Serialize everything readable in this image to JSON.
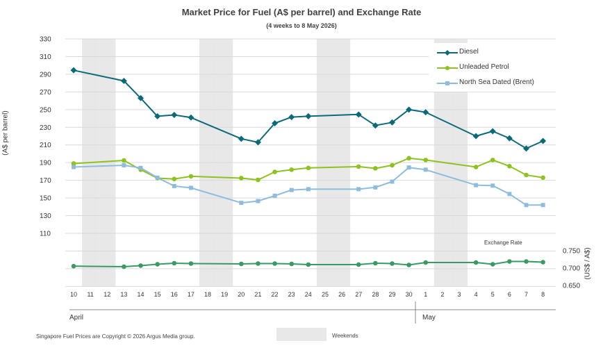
{
  "title": "Market Price for Fuel (A$ per barrel) and Exchange Rate",
  "subtitle": "(4 weeks to 8 May 2026)",
  "footer": {
    "copyright": "Singapore Fuel Prices are Copyright © 2026 Argus Media group.",
    "weekends_label": "Weekends"
  },
  "months": [
    "April",
    "May"
  ],
  "exchange_rate_label": "Exchange Rate",
  "colors": {
    "diesel": "#0b6a7a",
    "petrol": "#8dc21f",
    "brent": "#8fbcdc",
    "exchange": "#3a9a63",
    "weekend": "#e8e8e8",
    "grid": "#d9d9d9"
  },
  "chart_data": {
    "type": "line",
    "title": "Market Price for Fuel (A$ per barrel) and Exchange Rate",
    "subtitle": "(4 weeks to 8 May 2026)",
    "categories": [
      "10",
      "11",
      "12",
      "13",
      "14",
      "15",
      "16",
      "17",
      "18",
      "19",
      "20",
      "21",
      "22",
      "23",
      "24",
      "25",
      "26",
      "27",
      "28",
      "29",
      "30",
      "1",
      "2",
      "3",
      "4",
      "5",
      "6",
      "7",
      "8"
    ],
    "weekend_categories": [
      "11",
      "12",
      "18",
      "19",
      "25",
      "26",
      "2",
      "3"
    ],
    "ylabel": "(A$ per barrel)",
    "ylim": [
      110,
      330
    ],
    "yticks": [
      110,
      130,
      150,
      170,
      190,
      210,
      230,
      250,
      270,
      290,
      310,
      330
    ],
    "y2label": "(US$ / A$)",
    "y2ticks": [
      "0.650",
      "0.700",
      "0.750"
    ],
    "y2lim": [
      0.65,
      0.75
    ],
    "legend_position": "top-right",
    "series": [
      {
        "name": "Diesel",
        "marker": "diamond",
        "points": [
          [
            "10",
            294.5
          ],
          [
            "13",
            282.5
          ],
          [
            "14",
            263
          ],
          [
            "15",
            242.5
          ],
          [
            "16",
            244
          ],
          [
            "17",
            241
          ],
          [
            "20",
            217
          ],
          [
            "21",
            213
          ],
          [
            "22",
            234.5
          ],
          [
            "23",
            241.5
          ],
          [
            "24",
            242.5
          ],
          [
            "27",
            244.5
          ],
          [
            "28",
            232
          ],
          [
            "29",
            235.5
          ],
          [
            "30",
            250
          ],
          [
            "1",
            247
          ],
          [
            "4",
            220
          ],
          [
            "5",
            225.5
          ],
          [
            "6",
            217.5
          ],
          [
            "7",
            206
          ],
          [
            "8",
            214.5
          ]
        ]
      },
      {
        "name": "Unleaded Petrol",
        "marker": "circle",
        "points": [
          [
            "10",
            189
          ],
          [
            "13",
            192.5
          ],
          [
            "14",
            182
          ],
          [
            "15",
            172.5
          ],
          [
            "16",
            171.5
          ],
          [
            "17",
            174.5
          ],
          [
            "20",
            172.5
          ],
          [
            "21",
            170.5
          ],
          [
            "22",
            179.5
          ],
          [
            "23",
            182
          ],
          [
            "24",
            184
          ],
          [
            "27",
            185.5
          ],
          [
            "28",
            183.5
          ],
          [
            "29",
            187
          ],
          [
            "30",
            195
          ],
          [
            "1",
            193
          ],
          [
            "4",
            185
          ],
          [
            "5",
            193
          ],
          [
            "6",
            186
          ],
          [
            "7",
            176
          ],
          [
            "8",
            173
          ]
        ]
      },
      {
        "name": "North Sea Dated (Brent)",
        "marker": "square",
        "points": [
          [
            "10",
            185
          ],
          [
            "13",
            187
          ],
          [
            "14",
            184
          ],
          [
            "15",
            173
          ],
          [
            "16",
            163.5
          ],
          [
            "17",
            161.5
          ],
          [
            "20",
            144.5
          ],
          [
            "21",
            146.5
          ],
          [
            "22",
            152.5
          ],
          [
            "23",
            159
          ],
          [
            "24",
            160
          ],
          [
            "27",
            160
          ],
          [
            "28",
            162
          ],
          [
            "29",
            168.5
          ],
          [
            "30",
            184.5
          ],
          [
            "1",
            182
          ],
          [
            "4",
            164.5
          ],
          [
            "5",
            164
          ],
          [
            "6",
            154.5
          ],
          [
            "7",
            142
          ],
          [
            "8",
            142
          ]
        ]
      },
      {
        "name": "Exchange Rate",
        "marker": "circle",
        "axis": "right",
        "points": [
          [
            "10",
            0.7055
          ],
          [
            "13",
            0.704
          ],
          [
            "14",
            0.707
          ],
          [
            "15",
            0.711
          ],
          [
            "16",
            0.714
          ],
          [
            "17",
            0.713
          ],
          [
            "20",
            0.712
          ],
          [
            "21",
            0.713
          ],
          [
            "22",
            0.713
          ],
          [
            "23",
            0.712
          ],
          [
            "24",
            0.71
          ],
          [
            "27",
            0.71
          ],
          [
            "28",
            0.714
          ],
          [
            "29",
            0.713
          ],
          [
            "30",
            0.709
          ],
          [
            "1",
            0.716
          ],
          [
            "4",
            0.716
          ],
          [
            "5",
            0.711
          ],
          [
            "6",
            0.719
          ],
          [
            "7",
            0.719
          ],
          [
            "8",
            0.717
          ]
        ]
      }
    ]
  }
}
